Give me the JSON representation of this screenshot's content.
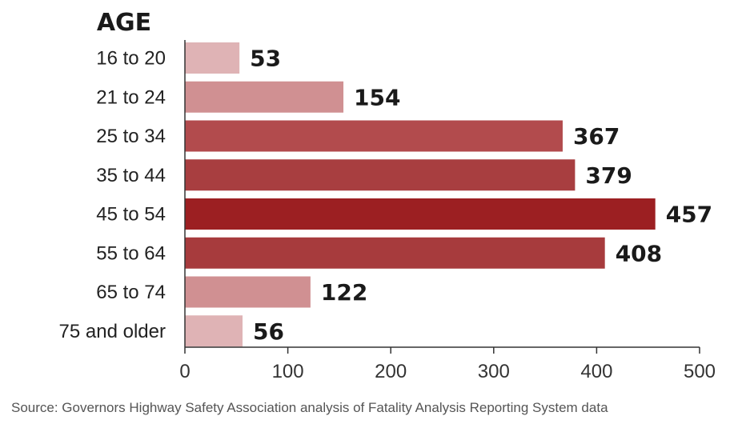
{
  "chart_data": {
    "type": "bar",
    "orientation": "horizontal",
    "ylabel": "AGE",
    "xlabel": "",
    "categories": [
      "16 to 20",
      "21 to 24",
      "25 to 34",
      "35 to 44",
      "45 to 54",
      "55 to 64",
      "65 to 74",
      "75 and older"
    ],
    "values": [
      53,
      154,
      367,
      379,
      457,
      408,
      122,
      56
    ],
    "value_labels": [
      "53",
      "154",
      "367",
      "379",
      "457",
      "408",
      "122",
      "56"
    ],
    "bar_colors": [
      "#dfb3b5",
      "#d09092",
      "#b24b4d",
      "#a83e40",
      "#9c1f22",
      "#a73b3d",
      "#d09092",
      "#dfb3b5"
    ],
    "xlim": [
      0,
      500
    ],
    "xticks": [
      0,
      100,
      200,
      300,
      400,
      500
    ],
    "xtick_labels": [
      "0",
      "100",
      "200",
      "300",
      "400",
      "500"
    ],
    "grid": false
  },
  "source": "Source: Governors Highway Safety Association analysis of Fatality Analysis Reporting System data"
}
